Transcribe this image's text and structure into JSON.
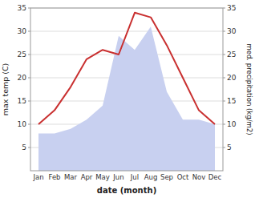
{
  "chart_data": {
    "type": "line",
    "categories": [
      "Jan",
      "Feb",
      "Mar",
      "Apr",
      "May",
      "Jun",
      "Jul",
      "Aug",
      "Sep",
      "Oct",
      "Nov",
      "Dec"
    ],
    "series": [
      {
        "type": "area",
        "color": "#c8d0f0",
        "axis": "y2",
        "values": [
          8,
          8,
          9,
          11,
          14,
          29,
          26,
          31,
          17,
          11,
          11,
          10
        ]
      },
      {
        "type": "line",
        "color": "#c93030",
        "values": [
          10,
          13,
          18,
          24,
          26,
          25,
          34,
          33,
          27,
          20,
          13,
          10
        ]
      }
    ],
    "xlabel": "date (month)",
    "ylabel": "max temp (C)",
    "y2label": "med. precipitation (kg/m2)",
    "ylim": [
      0,
      35
    ],
    "yticks": [
      5,
      10,
      15,
      20,
      25,
      30,
      35
    ],
    "y2lim": [
      0,
      35
    ],
    "y2ticks": [
      5,
      10,
      15,
      20,
      25,
      30,
      35
    ],
    "grid": true
  }
}
